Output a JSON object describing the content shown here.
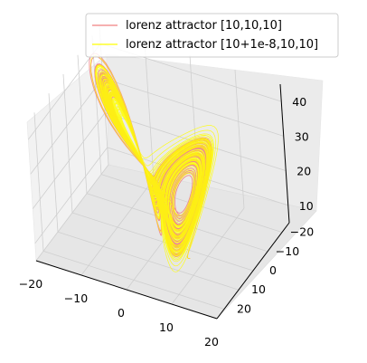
{
  "chart_data": {
    "type": "line",
    "projection": "3d",
    "series": [
      {
        "name": "lorenz attractor [10,10,10]",
        "color": "#f08080",
        "initial": [
          10,
          10,
          10
        ]
      },
      {
        "name": "lorenz attractor [10+1e-8,10,10]",
        "color": "#ffff00",
        "initial": [
          10.00000001,
          10,
          10
        ]
      }
    ],
    "xlim": [
      -20,
      20
    ],
    "ylim": [
      -25,
      25
    ],
    "zlim": [
      5,
      45
    ],
    "x_ticks": [
      "−20",
      "−10",
      "0",
      "10",
      "20"
    ],
    "y_ticks": [
      "−20",
      "−10",
      "0",
      "10",
      "20"
    ],
    "z_ticks": [
      "10",
      "20",
      "30",
      "40"
    ],
    "grid": true,
    "legend": "top-right"
  }
}
